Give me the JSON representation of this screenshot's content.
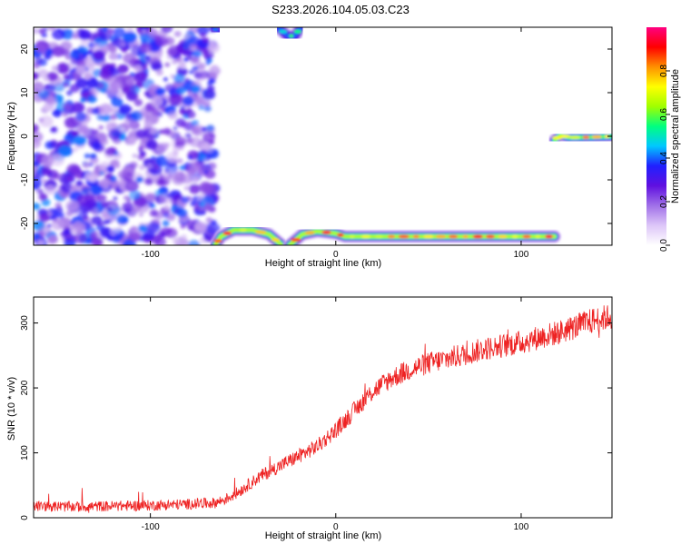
{
  "title": "S233.2026.104.05.03.C23",
  "chart_data": [
    {
      "type": "heatmap",
      "xlabel": "Height of straight line (km)",
      "ylabel": "Frequency (Hz)",
      "xlim": [
        -163,
        149
      ],
      "ylim": [
        -25,
        25
      ],
      "xticks": [
        -100,
        0,
        100
      ],
      "yticks": [
        -20,
        -10,
        0,
        10,
        20
      ],
      "colorbar": {
        "label": "Normalized spectral amplitude",
        "range": [
          0,
          1
        ],
        "ticks": [
          "0.0",
          "0.2",
          "0.4",
          "0.6",
          "0.8"
        ],
        "colormap": [
          "#ffffff",
          "#ddc6f8",
          "#a070e8",
          "#6010e0",
          "#2020ff",
          "#00c8ff",
          "#00ff80",
          "#a0ff00",
          "#ffff00",
          "#ff9000",
          "#ff0000",
          "#ff0080"
        ]
      },
      "background_noise": {
        "x_range": [
          -163,
          -65
        ],
        "level": 0.3
      },
      "traces": [
        {
          "points": [
            [
              -65,
              -25
            ],
            [
              -62,
              -23
            ],
            [
              -55,
              -21.5
            ],
            [
              -45,
              -21.5
            ],
            [
              -36,
              -22.5
            ],
            [
              -29,
              -25
            ]
          ],
          "level": 0.9
        },
        {
          "points": [
            [
              -25,
              -25
            ],
            [
              -18,
              -22.5
            ],
            [
              -10,
              -21.8
            ],
            [
              0,
              -22.3
            ],
            [
              5,
              -23
            ],
            [
              20,
              -23
            ],
            [
              60,
              -23
            ],
            [
              100,
              -23
            ],
            [
              118,
              -23
            ]
          ],
          "level": 0.9
        },
        {
          "points": [
            [
              -31,
              25
            ],
            [
              -26,
              23
            ],
            [
              -22,
              23
            ],
            [
              -19,
              25
            ]
          ],
          "level": 0.55
        },
        {
          "points": [
            [
              -67,
              25
            ],
            [
              -63,
              24
            ]
          ],
          "level": 0.45
        },
        {
          "points": [
            [
              118,
              -1
            ],
            [
              121,
              0.3
            ],
            [
              126,
              -0.3
            ],
            [
              138,
              -0.2
            ],
            [
              149,
              0
            ]
          ],
          "level": 0.8
        }
      ]
    },
    {
      "type": "line",
      "xlabel": "Height of straight line (km)",
      "ylabel": "SNR (10 * v/v)",
      "xlim": [
        -163,
        149
      ],
      "ylim": [
        0,
        340
      ],
      "xticks": [
        -100,
        0,
        100
      ],
      "yticks": [
        0,
        100,
        200,
        300
      ],
      "color": "#ee2222",
      "series": [
        {
          "x": [
            -163,
            -140,
            -120,
            -100,
            -80,
            -65,
            -60,
            -55,
            -50,
            -45,
            -40,
            -30,
            -20,
            -10,
            0,
            5,
            10,
            15,
            20,
            25,
            30,
            40,
            50,
            60,
            70,
            80,
            90,
            100,
            110,
            120,
            130,
            140,
            149
          ],
          "values": [
            18,
            17,
            18,
            19,
            21,
            23,
            28,
            35,
            45,
            55,
            65,
            80,
            95,
            110,
            135,
            150,
            165,
            180,
            195,
            205,
            215,
            228,
            238,
            245,
            252,
            260,
            265,
            270,
            278,
            285,
            295,
            305,
            310
          ]
        }
      ],
      "noise_amplitude": 25
    }
  ]
}
